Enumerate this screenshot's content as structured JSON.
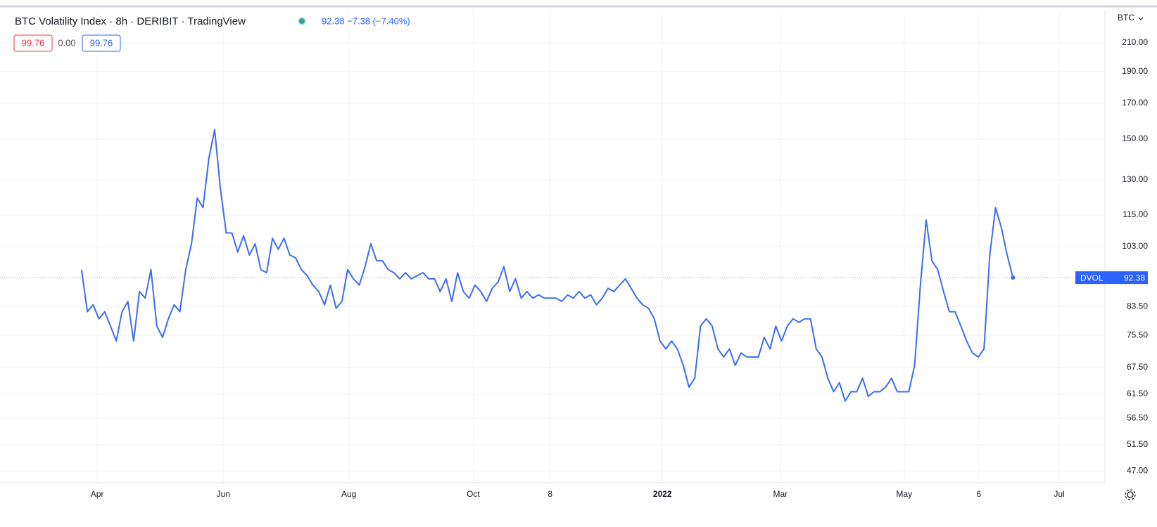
{
  "chart_data": {
    "type": "line",
    "title": "BTC Volatility Index · 8h · DERIBIT · TradingView",
    "legend_values": "92.38 −7.38 (−7.40%)",
    "ohlc_boxes": [
      "99.76",
      "0.00",
      "99.76"
    ],
    "currency": "BTC",
    "price_label": "DVOL",
    "log_scale": true,
    "grid": true,
    "xlim": [
      -14.1,
      176.9
    ],
    "xticks": [
      {
        "value": 2.7,
        "label": "Apr"
      },
      {
        "value": 24.5,
        "label": "Jun"
      },
      {
        "value": 46.2,
        "label": "Aug"
      },
      {
        "value": 67.7,
        "label": "Oct"
      },
      {
        "value": 81,
        "label": "8"
      },
      {
        "value": 100.4,
        "label": "2022"
      },
      {
        "value": 120.8,
        "label": "Mar"
      },
      {
        "value": 142.2,
        "label": "May"
      },
      {
        "value": 155.1,
        "label": "6"
      },
      {
        "value": 169,
        "label": "Jul"
      }
    ],
    "ylim": [
      45.1,
      231.6
    ],
    "yticks": [
      {
        "value": 210,
        "label": "210.00"
      },
      {
        "value": 190,
        "label": "190.00"
      },
      {
        "value": 170,
        "label": "170.00"
      },
      {
        "value": 150,
        "label": "150.00"
      },
      {
        "value": 130,
        "label": "130.00"
      },
      {
        "value": 115,
        "label": "115.00"
      },
      {
        "value": 103,
        "label": "103.00"
      },
      {
        "value": 83.5,
        "label": "83.50"
      },
      {
        "value": 75.5,
        "label": "75.50"
      },
      {
        "value": 67.5,
        "label": "67.50"
      },
      {
        "value": 61.5,
        "label": "61.50"
      },
      {
        "value": 56.5,
        "label": "56.50"
      },
      {
        "value": 51.5,
        "label": "51.50"
      },
      {
        "value": 47,
        "label": "47.00"
      }
    ],
    "series": [
      {
        "name": "DVOL",
        "color": "#3d6cf2",
        "values": [
          95,
          82,
          84,
          80,
          82,
          78,
          74,
          82,
          85,
          74,
          88,
          86,
          95,
          78,
          75,
          80,
          84,
          82,
          95,
          104,
          122,
          118,
          140,
          155,
          126,
          108,
          108,
          101,
          107,
          100,
          104,
          95,
          94,
          106,
          102,
          106,
          100,
          99,
          95,
          93,
          90,
          88,
          84,
          90,
          83,
          85,
          95,
          92,
          90,
          96,
          104,
          98,
          98,
          95,
          94,
          92,
          94,
          92,
          93,
          94,
          92,
          92,
          88,
          92,
          85,
          94,
          88,
          86,
          90,
          88,
          85,
          89,
          91,
          96,
          88,
          92,
          86,
          88,
          86,
          87,
          86,
          86,
          86,
          85,
          87,
          86,
          88,
          86,
          87,
          84,
          86,
          89,
          88,
          90,
          92,
          89,
          86,
          84,
          83,
          80,
          74,
          72,
          74,
          72,
          68,
          63,
          65,
          78,
          80,
          78,
          72,
          70,
          72,
          68,
          71,
          70,
          70,
          70,
          75,
          72,
          78,
          74,
          78,
          80,
          79,
          80,
          80,
          72,
          70,
          65,
          62,
          64,
          60,
          62,
          62,
          65,
          61,
          62,
          62,
          63,
          65,
          62,
          62,
          62,
          68,
          90,
          113,
          98,
          95,
          88,
          82,
          82,
          78,
          74,
          71,
          70,
          72,
          100,
          118,
          110,
          100,
          92.38
        ]
      }
    ]
  }
}
